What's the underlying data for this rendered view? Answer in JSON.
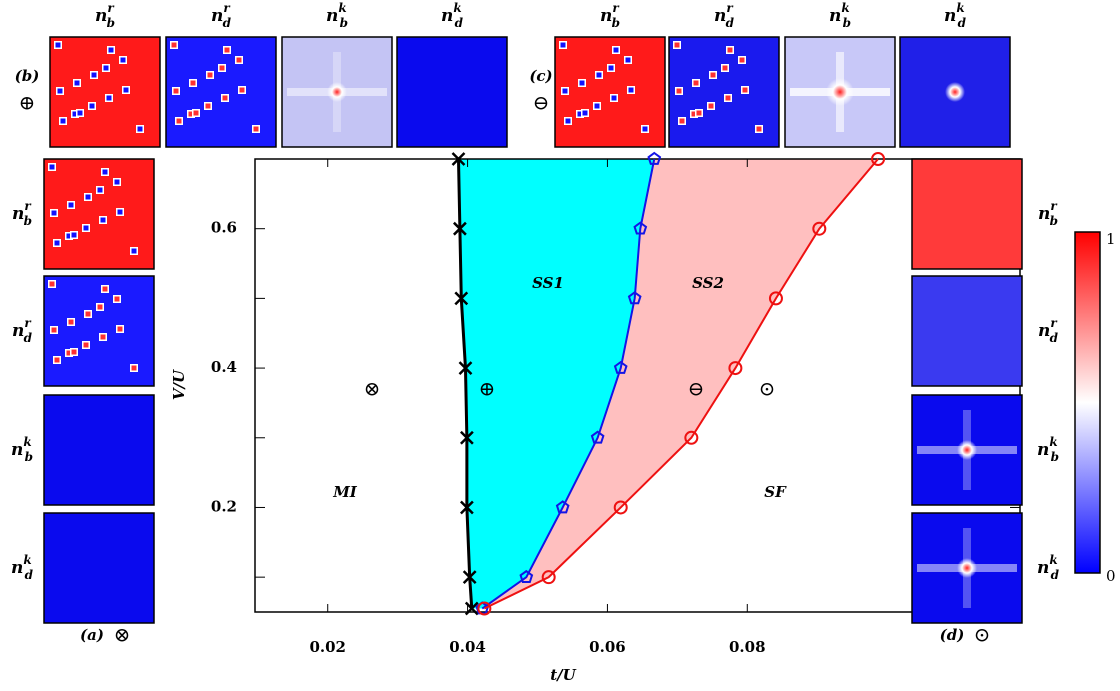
{
  "chart_data": {
    "type": "line",
    "x_label": "t/U",
    "y_label": "V/U",
    "xlim": [
      0.0096,
      0.119
    ],
    "ylim": [
      0.05,
      0.7
    ],
    "xticks": [
      0.02,
      0.04,
      0.06,
      0.08
    ],
    "yticks": [
      0.2,
      0.4,
      0.6
    ],
    "yminorticks": [
      0.1,
      0.3,
      0.5
    ],
    "series": [
      {
        "color": "#000000",
        "marker": "x",
        "x": [
          0.0387,
          0.0389,
          0.0391,
          0.0397,
          0.0399,
          0.0399,
          0.0403,
          0.0406
        ],
        "values": [
          0.7,
          0.6,
          0.5,
          0.4,
          0.3,
          0.2,
          0.1,
          0.055
        ]
      },
      {
        "color": "#1414e6",
        "marker": "pentagon",
        "x": [
          0.0667,
          0.0647,
          0.0639,
          0.0619,
          0.0586,
          0.0536,
          0.0484,
          0.0421
        ],
        "values": [
          0.7,
          0.6,
          0.5,
          0.4,
          0.3,
          0.2,
          0.1,
          0.055
        ]
      },
      {
        "color": "#ee1111",
        "marker": "circle",
        "x": [
          0.0987,
          0.0903,
          0.0841,
          0.0783,
          0.072,
          0.0619,
          0.0516,
          0.0424
        ],
        "values": [
          0.7,
          0.6,
          0.5,
          0.4,
          0.3,
          0.2,
          0.1,
          0.055
        ]
      }
    ],
    "fills": [
      {
        "between": [
          0,
          1
        ],
        "color": "#00ffff"
      },
      {
        "between": [
          1,
          2
        ],
        "color": "#ffbfbf"
      }
    ],
    "regions": [
      "MI",
      "SS1",
      "SS2",
      "SF"
    ],
    "phase_symbols": [
      "⊗",
      "⊕",
      "⊖",
      "⊙"
    ],
    "panels": [
      {
        "label": "(a)",
        "symbol": "⊗",
        "maps": [
          {
            "n": "n",
            "sub": "b",
            "sup": "r"
          },
          {
            "n": "n",
            "sub": "d",
            "sup": "r"
          },
          {
            "n": "n",
            "sub": "b",
            "sup": "k"
          },
          {
            "n": "n",
            "sub": "d",
            "sup": "k"
          }
        ]
      },
      {
        "label": "(b)",
        "symbol": "⊕",
        "maps": [
          {
            "n": "n",
            "sub": "b",
            "sup": "r"
          },
          {
            "n": "n",
            "sub": "d",
            "sup": "r"
          },
          {
            "n": "n",
            "sub": "b",
            "sup": "k"
          },
          {
            "n": "n",
            "sub": "d",
            "sup": "k"
          }
        ]
      },
      {
        "label": "(c)",
        "symbol": "⊖",
        "maps": [
          {
            "n": "n",
            "sub": "b",
            "sup": "r"
          },
          {
            "n": "n",
            "sub": "d",
            "sup": "r"
          },
          {
            "n": "n",
            "sub": "b",
            "sup": "k"
          },
          {
            "n": "n",
            "sub": "d",
            "sup": "k"
          }
        ]
      },
      {
        "label": "(d)",
        "symbol": "⊙",
        "maps": [
          {
            "n": "n",
            "sub": "b",
            "sup": "r"
          },
          {
            "n": "n",
            "sub": "d",
            "sup": "r"
          },
          {
            "n": "n",
            "sub": "b",
            "sup": "k"
          },
          {
            "n": "n",
            "sub": "d",
            "sup": "k"
          }
        ]
      }
    ],
    "colorbar": {
      "min": 0,
      "max": 1
    }
  }
}
